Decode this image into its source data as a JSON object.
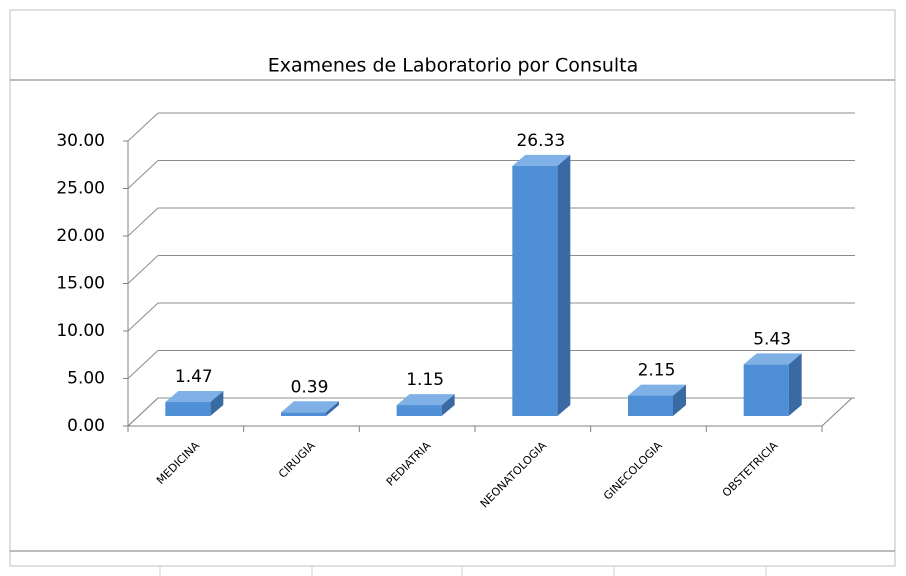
{
  "chart_data": {
    "type": "bar3d",
    "title": "Examenes de Laboratorio por Consulta",
    "categories": [
      "MEDICINA",
      "CIRUGIA",
      "PEDIATRIA",
      "NEONATOLOGIA",
      "GINECOLOGIA",
      "OBSTETRICIA"
    ],
    "values": [
      1.47,
      0.39,
      1.15,
      26.33,
      2.15,
      5.43
    ],
    "color": "#4f8fd6",
    "ylim": [
      0,
      30
    ],
    "yticks": [
      {
        "value": 0,
        "label": "0.00"
      },
      {
        "value": 5,
        "label": "5.00"
      },
      {
        "value": 10,
        "label": "10.00"
      },
      {
        "value": 15,
        "label": "15.00"
      },
      {
        "value": 20,
        "label": "20.00"
      },
      {
        "value": 25,
        "label": "25.00"
      },
      {
        "value": 30,
        "label": "30.00"
      }
    ],
    "grid": true
  }
}
